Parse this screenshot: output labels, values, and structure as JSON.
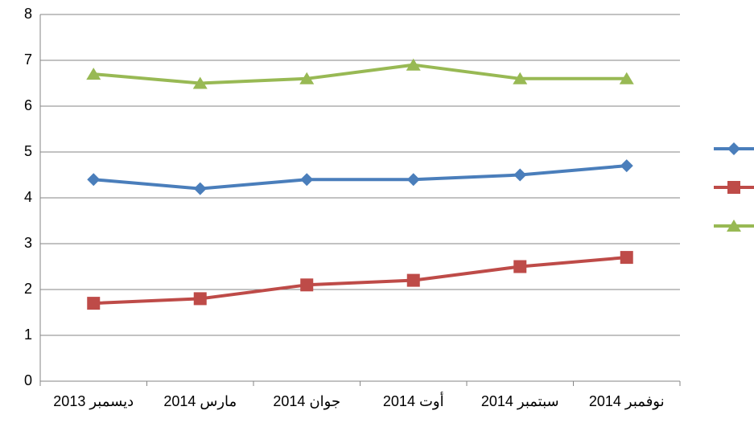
{
  "chart_data": {
    "type": "line",
    "categories": [
      "ديسمبر 2013",
      "مارس 2014",
      "جوان 2014",
      "أوت 2014",
      "سبتمبر 2014",
      "نوفمبر 2014"
    ],
    "series": [
      {
        "color": "#4a7ebb",
        "marker": "diamond",
        "values": [
          4.4,
          4.2,
          4.4,
          4.4,
          4.5,
          4.7
        ]
      },
      {
        "color": "#be4b48",
        "marker": "square",
        "values": [
          1.7,
          1.8,
          2.1,
          2.2,
          2.5,
          2.7
        ]
      },
      {
        "color": "#98b954",
        "marker": "triangle",
        "values": [
          6.7,
          6.5,
          6.6,
          6.9,
          6.6,
          6.6
        ]
      }
    ],
    "ylim": [
      0,
      8
    ],
    "yticks": [
      0,
      1,
      2,
      3,
      4,
      5,
      6,
      7,
      8
    ],
    "grid": true,
    "legend": "right"
  }
}
